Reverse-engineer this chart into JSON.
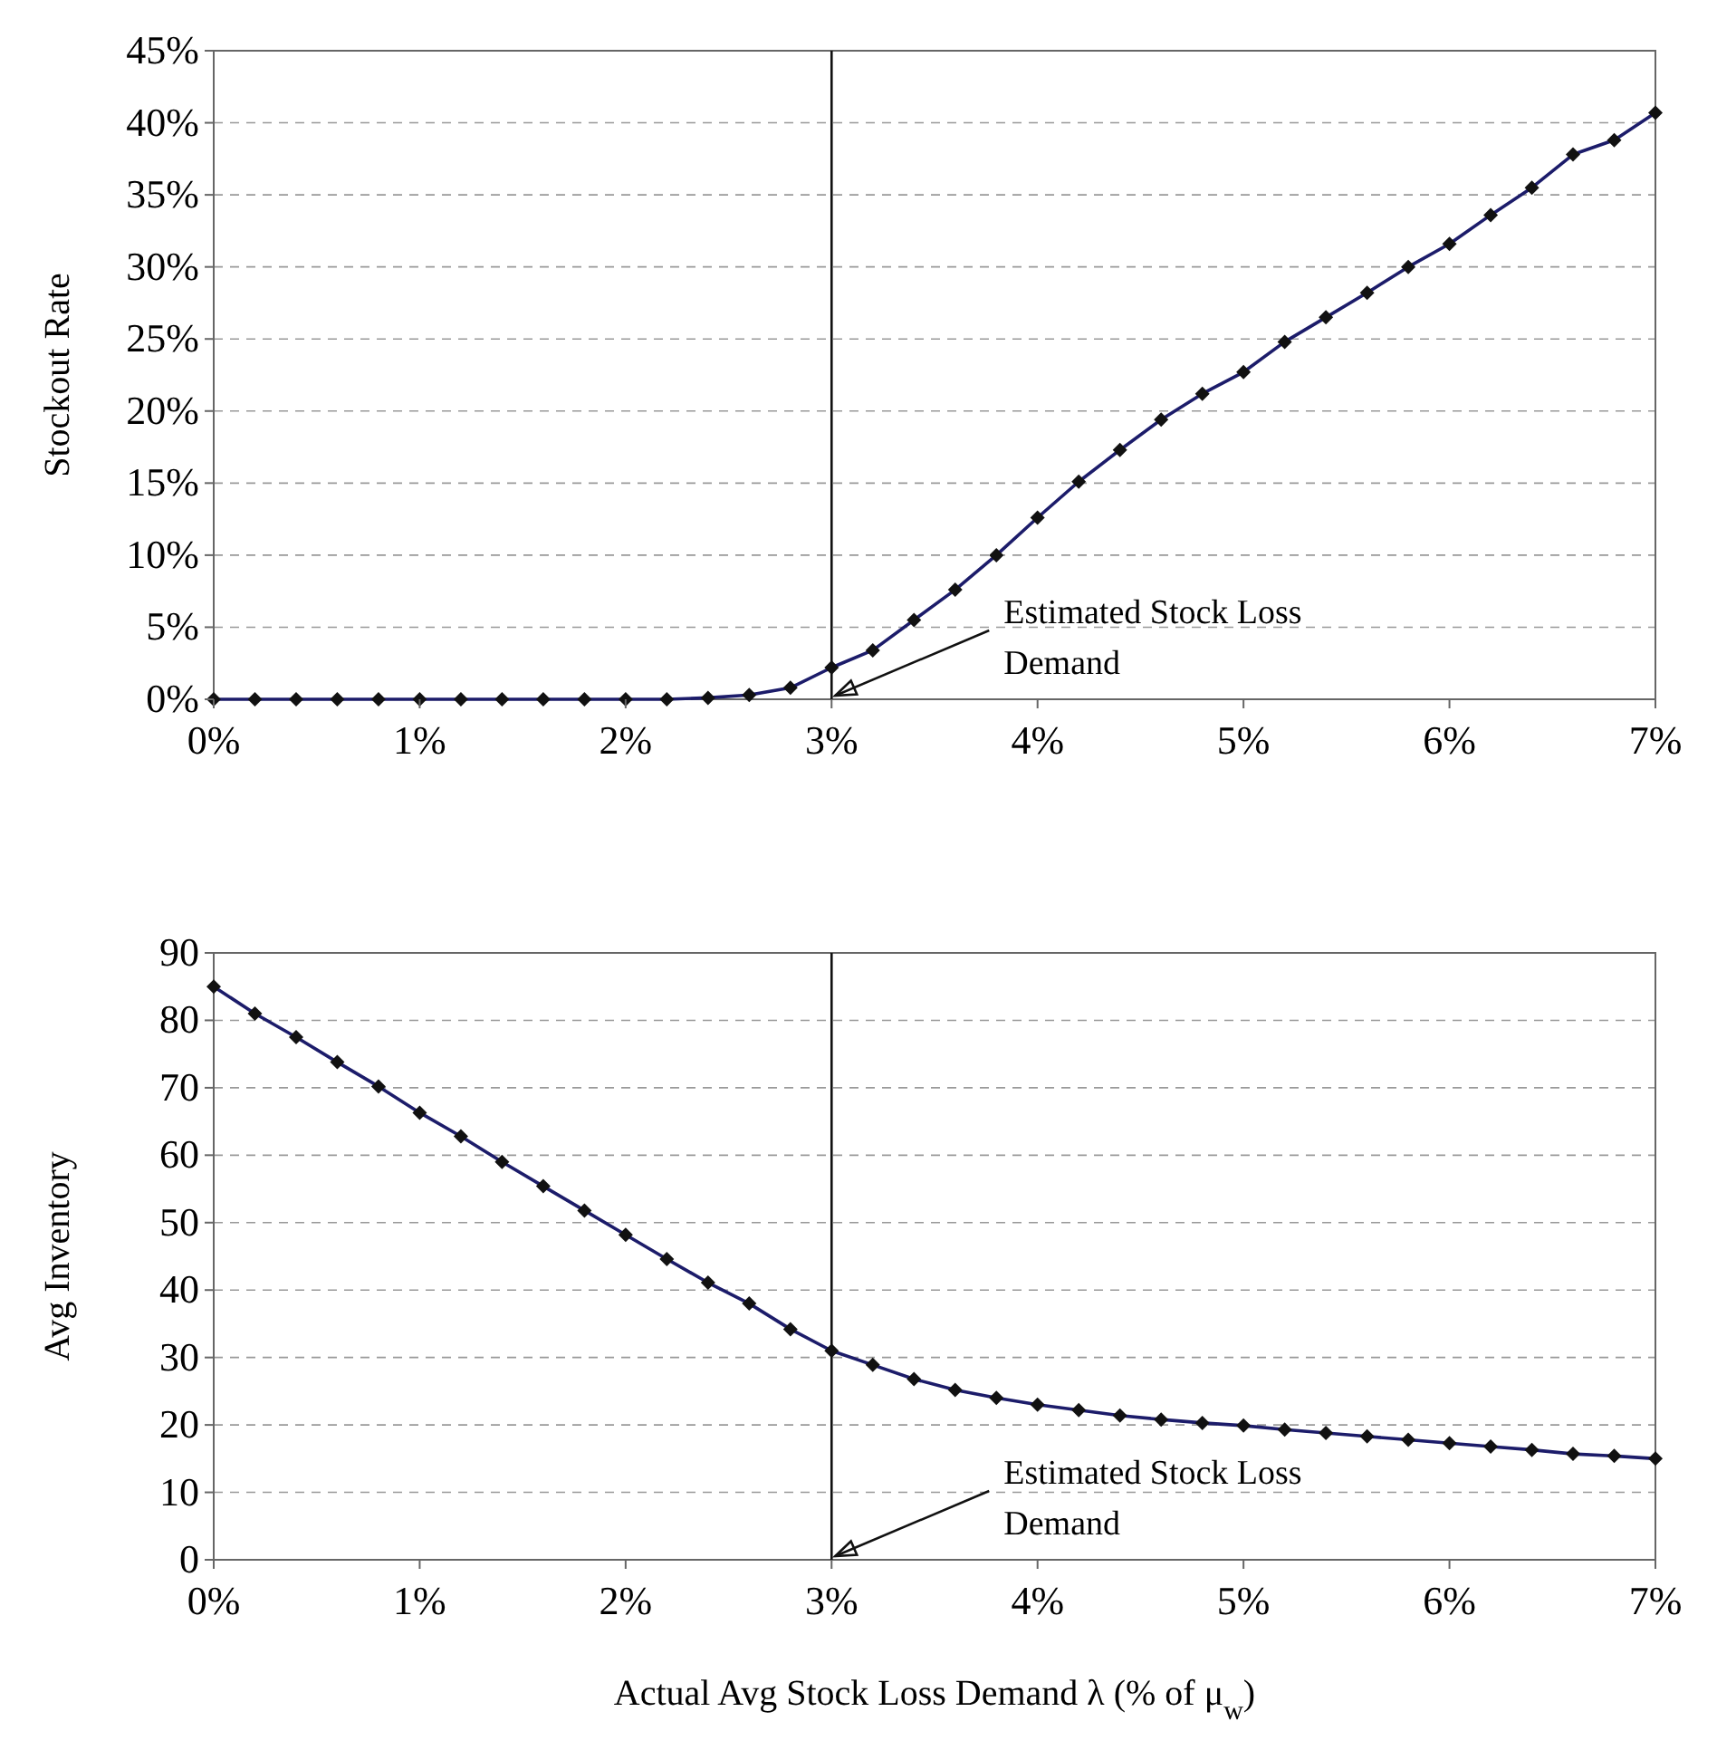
{
  "chart_data": [
    {
      "type": "line",
      "ylabel": "Stockout Rate",
      "x": [
        0,
        0.2,
        0.4,
        0.6,
        0.8,
        1,
        1.2,
        1.4,
        1.6,
        1.8,
        2,
        2.2,
        2.4,
        2.6,
        2.8,
        3,
        3.2,
        3.4,
        3.6,
        3.8,
        4,
        4.2,
        4.4,
        4.6,
        4.8,
        5,
        5.2,
        5.4,
        5.6,
        5.8,
        6,
        6.2,
        6.4,
        6.6,
        6.8,
        7
      ],
      "series": [
        {
          "color": "#1c1c6a",
          "values": [
            0,
            0,
            0,
            0,
            0,
            0,
            0,
            0,
            0,
            0,
            0,
            0,
            0.1,
            0.3,
            0.8,
            2.2,
            3.4,
            5.5,
            7.6,
            10.0,
            12.6,
            15.1,
            17.3,
            19.4,
            21.2,
            22.7,
            24.8,
            26.5,
            28.2,
            30.0,
            31.6,
            33.6,
            35.5,
            37.8,
            38.8,
            40.7
          ]
        }
      ],
      "xlim": [
        0,
        7
      ],
      "xticks": [
        {
          "value": 0,
          "label": "0%"
        },
        {
          "value": 1,
          "label": "1%"
        },
        {
          "value": 2,
          "label": "2%"
        },
        {
          "value": 3,
          "label": "3%"
        },
        {
          "value": 4,
          "label": "4%"
        },
        {
          "value": 5,
          "label": "5%"
        },
        {
          "value": 6,
          "label": "6%"
        },
        {
          "value": 7,
          "label": "7%"
        }
      ],
      "ylim": [
        0,
        45
      ],
      "yticks": [
        {
          "value": 0,
          "label": "0%"
        },
        {
          "value": 5,
          "label": "5%"
        },
        {
          "value": 10,
          "label": "10%"
        },
        {
          "value": 15,
          "label": "15%"
        },
        {
          "value": 20,
          "label": "20%"
        },
        {
          "value": 25,
          "label": "25%"
        },
        {
          "value": 30,
          "label": "30%"
        },
        {
          "value": 35,
          "label": "35%"
        },
        {
          "value": 40,
          "label": "40%"
        },
        {
          "value": 45,
          "label": "45%"
        }
      ],
      "grid": "y",
      "marker": "diamond",
      "line_style": "solid",
      "ref_lines": [
        {
          "axis": "x",
          "value": 3
        }
      ],
      "annotations": [
        {
          "text": "Estimated Stock Loss Demand",
          "x": 3,
          "y": 0
        }
      ]
    },
    {
      "type": "line",
      "ylabel": "Avg Inventory",
      "xlabel": "Actual Avg Stock Loss Demand λ (% of μ$_{w}$)",
      "x": [
        0,
        0.2,
        0.4,
        0.6,
        0.8,
        1,
        1.2,
        1.4,
        1.6,
        1.8,
        2,
        2.2,
        2.4,
        2.6,
        2.8,
        3,
        3.2,
        3.4,
        3.6,
        3.8,
        4,
        4.2,
        4.4,
        4.6,
        4.8,
        5,
        5.2,
        5.4,
        5.6,
        5.8,
        6,
        6.2,
        6.4,
        6.6,
        6.8,
        7
      ],
      "series": [
        {
          "color": "#1c1c6a",
          "values": [
            85,
            81,
            77.5,
            73.8,
            70.2,
            66.3,
            62.8,
            59,
            55.4,
            51.8,
            48.2,
            44.6,
            41.1,
            38,
            34.2,
            31,
            28.9,
            26.8,
            25.2,
            24,
            23,
            22.2,
            21.4,
            20.8,
            20.3,
            19.9,
            19.3,
            18.8,
            18.3,
            17.8,
            17.3,
            16.8,
            16.3,
            15.7,
            15.4,
            15
          ]
        }
      ],
      "xlim": [
        0,
        7
      ],
      "xticks": [
        {
          "value": 0,
          "label": "0%"
        },
        {
          "value": 1,
          "label": "1%"
        },
        {
          "value": 2,
          "label": "2%"
        },
        {
          "value": 3,
          "label": "3%"
        },
        {
          "value": 4,
          "label": "4%"
        },
        {
          "value": 5,
          "label": "5%"
        },
        {
          "value": 6,
          "label": "6%"
        },
        {
          "value": 7,
          "label": "7%"
        }
      ],
      "ylim": [
        0,
        90
      ],
      "yticks": [
        0,
        10,
        20,
        30,
        40,
        50,
        60,
        70,
        80,
        90
      ],
      "grid": "y",
      "marker": "diamond",
      "line_style": "solid",
      "ref_lines": [
        {
          "axis": "x",
          "value": 3
        }
      ],
      "annotations": [
        {
          "text": "Estimated Stock Loss Demand",
          "x": 3,
          "y": 0
        }
      ]
    }
  ]
}
